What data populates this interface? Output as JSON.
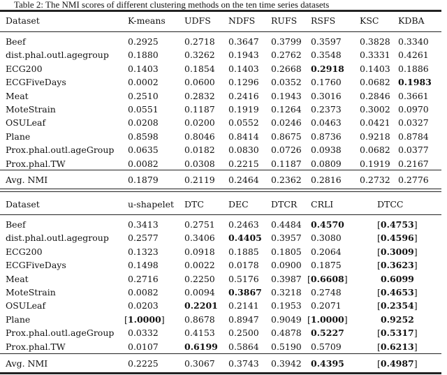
{
  "caption": "Table 2: The NMI scores of different clustering methods on the ten time series datasets",
  "tables": [
    {
      "headers": [
        "Dataset",
        "K-means",
        "UDFS",
        "NDFS",
        "RUFS",
        "RSFS",
        "KSC",
        "KDBA"
      ],
      "rows": [
        {
          "dataset": "Beef",
          "cells": [
            {
              "v": "0.2925"
            },
            {
              "v": "0.2718"
            },
            {
              "v": "0.3647"
            },
            {
              "v": "0.3799"
            },
            {
              "v": "0.3597"
            },
            {
              "v": "0.3828"
            },
            {
              "v": "0.3340"
            }
          ]
        },
        {
          "dataset": "dist.phal.outl.agegroup",
          "cells": [
            {
              "v": "0.1880"
            },
            {
              "v": "0.3262"
            },
            {
              "v": "0.1943"
            },
            {
              "v": "0.2762"
            },
            {
              "v": "0.3548"
            },
            {
              "v": "0.3331"
            },
            {
              "v": "0.4261"
            }
          ]
        },
        {
          "dataset": "ECG200",
          "cells": [
            {
              "v": "0.1403"
            },
            {
              "v": "0.1854"
            },
            {
              "v": "0.1403"
            },
            {
              "v": "0.2668"
            },
            {
              "v": "0.2918",
              "bold": true
            },
            {
              "v": "0.1403"
            },
            {
              "v": "0.1886"
            }
          ]
        },
        {
          "dataset": "ECGFiveDays",
          "cells": [
            {
              "v": "0.0002"
            },
            {
              "v": "0.0600"
            },
            {
              "v": "0.1296"
            },
            {
              "v": "0.0352"
            },
            {
              "v": "0.1760"
            },
            {
              "v": "0.0682"
            },
            {
              "v": "0.1983",
              "bold": true
            }
          ]
        },
        {
          "dataset": "Meat",
          "cells": [
            {
              "v": "0.2510"
            },
            {
              "v": "0.2832"
            },
            {
              "v": "0.2416"
            },
            {
              "v": "0.1943"
            },
            {
              "v": "0.3016"
            },
            {
              "v": "0.2846"
            },
            {
              "v": "0.3661"
            }
          ]
        },
        {
          "dataset": "MoteStrain",
          "cells": [
            {
              "v": "0.0551"
            },
            {
              "v": "0.1187"
            },
            {
              "v": "0.1919"
            },
            {
              "v": "0.1264"
            },
            {
              "v": "0.2373"
            },
            {
              "v": "0.3002"
            },
            {
              "v": "0.0970"
            }
          ]
        },
        {
          "dataset": "OSULeaf",
          "cells": [
            {
              "v": "0.0208"
            },
            {
              "v": "0.0200"
            },
            {
              "v": "0.0552"
            },
            {
              "v": "0.0246"
            },
            {
              "v": "0.0463"
            },
            {
              "v": "0.0421"
            },
            {
              "v": "0.0327"
            }
          ]
        },
        {
          "dataset": "Plane",
          "cells": [
            {
              "v": "0.8598"
            },
            {
              "v": "0.8046"
            },
            {
              "v": "0.8414"
            },
            {
              "v": "0.8675"
            },
            {
              "v": "0.8736"
            },
            {
              "v": "0.9218"
            },
            {
              "v": "0.8784"
            }
          ]
        },
        {
          "dataset": "Prox.phal.outl.ageGroup",
          "cells": [
            {
              "v": "0.0635"
            },
            {
              "v": "0.0182"
            },
            {
              "v": "0.0830"
            },
            {
              "v": "0.0726"
            },
            {
              "v": "0.0938"
            },
            {
              "v": "0.0682"
            },
            {
              "v": "0.0377"
            }
          ]
        },
        {
          "dataset": "Prox.phal.TW",
          "cells": [
            {
              "v": "0.0082"
            },
            {
              "v": "0.0308"
            },
            {
              "v": "0.2215"
            },
            {
              "v": "0.1187"
            },
            {
              "v": "0.0809"
            },
            {
              "v": "0.1919"
            },
            {
              "v": "0.2167"
            }
          ]
        }
      ],
      "avg": {
        "dataset": "Avg. NMI",
        "cells": [
          {
            "v": "0.1879"
          },
          {
            "v": "0.2119"
          },
          {
            "v": "0.2464"
          },
          {
            "v": "0.2362"
          },
          {
            "v": "0.2816"
          },
          {
            "v": "0.2732"
          },
          {
            "v": "0.2776"
          }
        ]
      }
    },
    {
      "headers": [
        "Dataset",
        "u-shapelet",
        "DTC",
        "DEC",
        "DTCR",
        "CRLI",
        "DTCC"
      ],
      "rows": [
        {
          "dataset": "Beef",
          "cells": [
            {
              "v": "0.3413"
            },
            {
              "v": "0.2751"
            },
            {
              "v": "0.2463"
            },
            {
              "v": "0.4484"
            },
            {
              "v": "0.4570",
              "bold": true
            },
            {
              "v": "0.4753",
              "bold": true,
              "bracket": true
            }
          ]
        },
        {
          "dataset": "dist.phal.outl.agegroup",
          "cells": [
            {
              "v": "0.2577"
            },
            {
              "v": "0.3406"
            },
            {
              "v": "0.4405",
              "bold": true
            },
            {
              "v": "0.3957"
            },
            {
              "v": "0.3080"
            },
            {
              "v": "0.4596",
              "bold": true,
              "bracket": true
            }
          ]
        },
        {
          "dataset": "ECG200",
          "cells": [
            {
              "v": "0.1323"
            },
            {
              "v": "0.0918"
            },
            {
              "v": "0.1885"
            },
            {
              "v": "0.1805"
            },
            {
              "v": "0.2064"
            },
            {
              "v": "0.3009",
              "bold": true,
              "bracket": true
            }
          ]
        },
        {
          "dataset": "ECGFiveDays",
          "cells": [
            {
              "v": "0.1498"
            },
            {
              "v": "0.0022"
            },
            {
              "v": "0.0178"
            },
            {
              "v": "0.0900"
            },
            {
              "v": "0.1875"
            },
            {
              "v": "0.3623",
              "bold": true,
              "bracket": true
            }
          ]
        },
        {
          "dataset": "Meat",
          "cells": [
            {
              "v": "0.2716"
            },
            {
              "v": "0.2250"
            },
            {
              "v": "0.5176"
            },
            {
              "v": "0.3987"
            },
            {
              "v": "0.6608",
              "bold": true,
              "bracket": true
            },
            {
              "v": "0.6099",
              "bold": true
            }
          ]
        },
        {
          "dataset": "MoteStrain",
          "cells": [
            {
              "v": "0.0082"
            },
            {
              "v": "0.0094"
            },
            {
              "v": "0.3867",
              "bold": true
            },
            {
              "v": "0.3218"
            },
            {
              "v": "0.2748"
            },
            {
              "v": "0.4653",
              "bold": true,
              "bracket": true
            }
          ]
        },
        {
          "dataset": "OSULeaf",
          "cells": [
            {
              "v": "0.0203"
            },
            {
              "v": "0.2201",
              "bold": true
            },
            {
              "v": "0.2141"
            },
            {
              "v": "0.1953"
            },
            {
              "v": "0.2071"
            },
            {
              "v": "0.2354",
              "bold": true,
              "bracket": true
            }
          ]
        },
        {
          "dataset": "Plane",
          "cells": [
            {
              "v": "1.0000",
              "bold": true,
              "bracket": true
            },
            {
              "v": "0.8678"
            },
            {
              "v": "0.8947"
            },
            {
              "v": "0.9049"
            },
            {
              "v": "1.0000",
              "bold": true,
              "bracket": true
            },
            {
              "v": "0.9252",
              "bold": true
            }
          ]
        },
        {
          "dataset": "Prox.phal.outl.ageGroup",
          "cells": [
            {
              "v": "0.0332"
            },
            {
              "v": "0.4153"
            },
            {
              "v": "0.2500"
            },
            {
              "v": "0.4878"
            },
            {
              "v": "0.5227",
              "bold": true
            },
            {
              "v": "0.5317",
              "bold": true,
              "bracket": true
            }
          ]
        },
        {
          "dataset": "Prox.phal.TW",
          "cells": [
            {
              "v": "0.0107"
            },
            {
              "v": "0.6199",
              "bold": true
            },
            {
              "v": "0.5864"
            },
            {
              "v": "0.5190"
            },
            {
              "v": "0.5709"
            },
            {
              "v": "0.6213",
              "bold": true,
              "bracket": true
            }
          ]
        }
      ],
      "avg": {
        "dataset": "Avg. NMI",
        "cells": [
          {
            "v": "0.2225"
          },
          {
            "v": "0.3067"
          },
          {
            "v": "0.3743"
          },
          {
            "v": "0.3942"
          },
          {
            "v": "0.4395",
            "bold": true
          },
          {
            "v": "0.4987",
            "bold": true,
            "bracket": true
          }
        ]
      }
    }
  ]
}
